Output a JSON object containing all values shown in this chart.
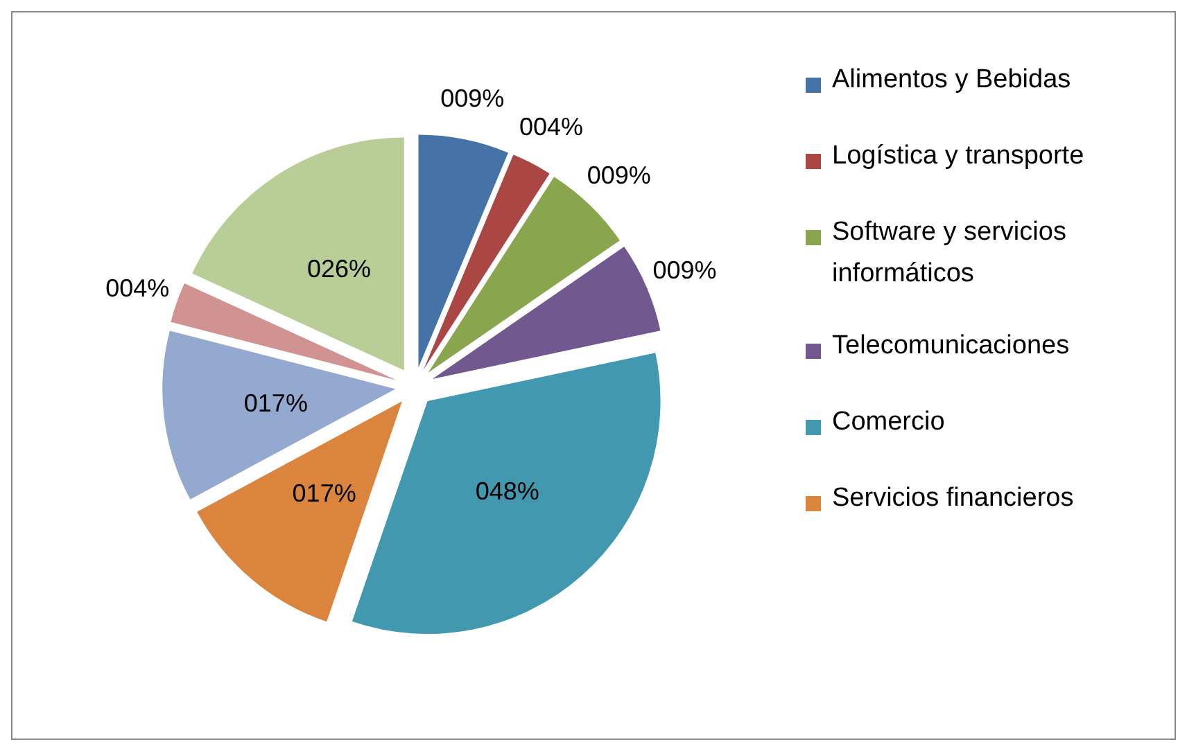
{
  "chart_data": {
    "type": "pie",
    "categories": [
      "Alimentos y Bebidas",
      "Logística y transporte",
      "Software y servicios informáticos",
      "Telecomunicaciones",
      "Comercio",
      "Servicios financieros",
      null,
      null,
      null
    ],
    "values": [
      9,
      4,
      9,
      9,
      48,
      17,
      17,
      4,
      26
    ],
    "value_labels": [
      "009%",
      "004%",
      "009%",
      "009%",
      "048%",
      "017%",
      "017%",
      "004%",
      "026%"
    ],
    "colors": [
      "#4573a7",
      "#aa4643",
      "#89a54e",
      "#71588f",
      "#4198af",
      "#db843d",
      "#93a9cf",
      "#d19392",
      "#b9cd96"
    ],
    "legend": "right"
  }
}
